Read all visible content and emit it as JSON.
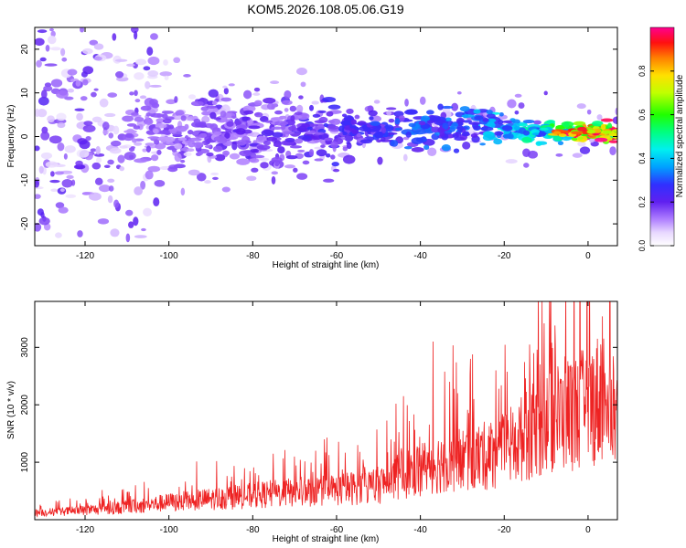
{
  "title": "KOM5.2026.108.05.06.G19",
  "chart_data": [
    {
      "type": "heatmap",
      "xlabel": "Height of straight line (km)",
      "ylabel": "Frequency (Hz)",
      "xlim": [
        -132,
        7
      ],
      "ylim": [
        -25,
        25
      ],
      "x_ticks": [
        -120,
        -100,
        -80,
        -60,
        -40,
        -20,
        0
      ],
      "y_ticks": [
        -20,
        -10,
        0,
        10,
        20
      ],
      "colorbar": {
        "label": "Normalized spectral amplitude",
        "range": [
          0,
          1
        ],
        "ticks": [
          0.0,
          0.2,
          0.4,
          0.6,
          0.8
        ],
        "colormap": [
          "#ffffff",
          "#d4b8ff",
          "#7a2cf0",
          "#3a3aff",
          "#00e0ff",
          "#00ff60",
          "#c8ff00",
          "#ffd000",
          "#ff3000",
          "#ff0090"
        ]
      },
      "ridge": [
        {
          "x": -130,
          "freq": 3.0,
          "amp": 0.12
        },
        {
          "x": -115,
          "freq": 2.5,
          "amp": 0.14
        },
        {
          "x": -100,
          "freq": 1.0,
          "amp": 0.16
        },
        {
          "x": -80,
          "freq": 0.8,
          "amp": 0.2
        },
        {
          "x": -60,
          "freq": 1.0,
          "amp": 0.24
        },
        {
          "x": -40,
          "freq": 2.0,
          "amp": 0.3
        },
        {
          "x": -25,
          "freq": 2.5,
          "amp": 0.36
        },
        {
          "x": -15,
          "freq": 1.0,
          "amp": 0.45
        },
        {
          "x": -5,
          "freq": 1.2,
          "amp": 0.6
        },
        {
          "x": 0,
          "freq": 1.0,
          "amp": 0.95
        },
        {
          "x": 7,
          "freq": 1.0,
          "amp": 0.9
        }
      ]
    },
    {
      "type": "line",
      "xlabel": "Height of straight line (km)",
      "ylabel": "SNR (10 * v/v)",
      "xlim": [
        -132,
        7
      ],
      "ylim": [
        0,
        3800
      ],
      "x_ticks": [
        -120,
        -100,
        -80,
        -60,
        -40,
        -20,
        0
      ],
      "y_ticks": [
        1000,
        2000,
        3000
      ],
      "color": "#ee2222",
      "trend": [
        {
          "x": -132,
          "y": 120
        },
        {
          "x": -120,
          "y": 160
        },
        {
          "x": -110,
          "y": 220
        },
        {
          "x": -100,
          "y": 300
        },
        {
          "x": -90,
          "y": 360
        },
        {
          "x": -80,
          "y": 420
        },
        {
          "x": -70,
          "y": 480
        },
        {
          "x": -60,
          "y": 520
        },
        {
          "x": -50,
          "y": 600
        },
        {
          "x": -45,
          "y": 750
        },
        {
          "x": -40,
          "y": 900
        },
        {
          "x": -35,
          "y": 1000
        },
        {
          "x": -30,
          "y": 1050
        },
        {
          "x": -25,
          "y": 1100
        },
        {
          "x": -20,
          "y": 1200
        },
        {
          "x": -15,
          "y": 1450
        },
        {
          "x": -10,
          "y": 1700
        },
        {
          "x": -5,
          "y": 1850
        },
        {
          "x": 0,
          "y": 1950
        },
        {
          "x": 5,
          "y": 2300
        },
        {
          "x": 7,
          "y": 1700
        }
      ],
      "spikes": [
        {
          "x": -108,
          "y": 600
        },
        {
          "x": -85,
          "y": 750
        },
        {
          "x": -70,
          "y": 1100
        },
        {
          "x": -55,
          "y": 1300
        },
        {
          "x": -44,
          "y": 2150
        },
        {
          "x": -37,
          "y": 3100
        },
        {
          "x": -33,
          "y": 2400
        },
        {
          "x": -28,
          "y": 2800
        },
        {
          "x": -22,
          "y": 2600
        },
        {
          "x": -13,
          "y": 2900
        },
        {
          "x": -11,
          "y": 3850
        },
        {
          "x": -9,
          "y": 3000
        },
        {
          "x": 3,
          "y": 3050
        }
      ]
    }
  ]
}
